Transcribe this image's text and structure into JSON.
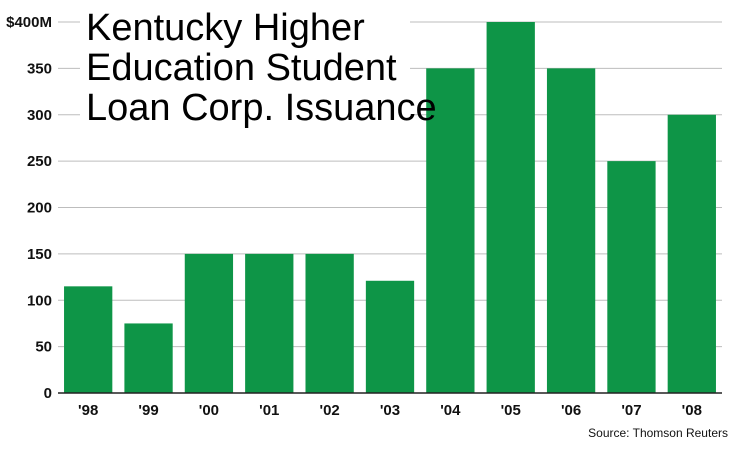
{
  "chart_data": {
    "type": "bar",
    "title_lines": [
      "Kentucky Higher",
      "Education Student",
      "Loan Corp. Issuance"
    ],
    "categories": [
      "'98",
      "'99",
      "'00",
      "'01",
      "'02",
      "'03",
      "'04",
      "'05",
      "'06",
      "'07",
      "'08"
    ],
    "values": [
      115,
      75,
      150,
      150,
      150,
      121,
      350,
      400,
      350,
      250,
      300
    ],
    "y_ticks": [
      "0",
      "50",
      "100",
      "150",
      "200",
      "250",
      "300",
      "350",
      "$400M"
    ],
    "ylim": [
      0,
      400
    ],
    "grid": true,
    "bar_color": "#0e9547",
    "source": "Source: Thomson Reuters"
  }
}
